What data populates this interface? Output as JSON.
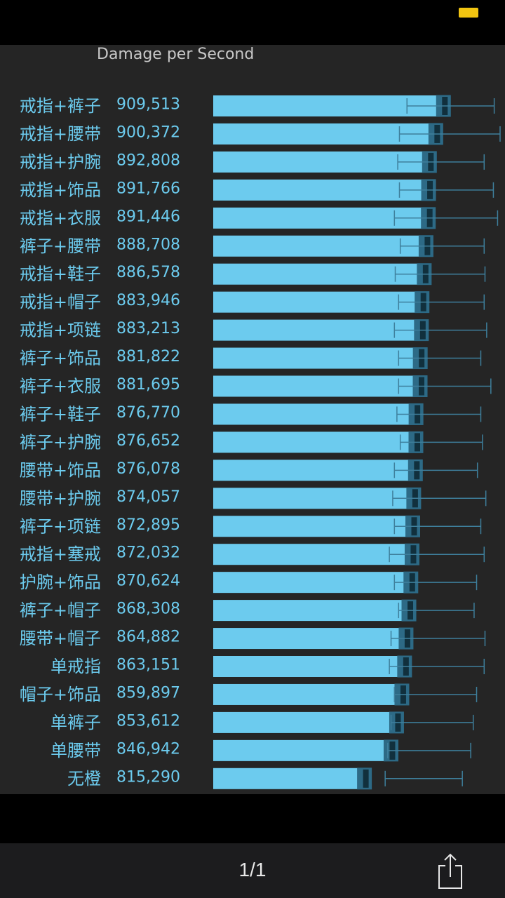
{
  "toolbar": {
    "page_indicator": "1/1"
  },
  "colors": {
    "bar": "#6ccbee",
    "band": "#2d6a86",
    "whisker": "#3e7f9c",
    "mean_marker": "#11303d",
    "label": "#6ccbee",
    "background": "#252525"
  },
  "icons": {
    "share": "share-icon",
    "battery": "battery-icon"
  },
  "chart_data": {
    "type": "bar",
    "orientation": "horizontal",
    "title": "Damage per Second",
    "xlabel": "",
    "ylabel": "",
    "grid": false,
    "legend": "none",
    "categories": [
      "戒指+裤子",
      "戒指+腰带",
      "戒指+护腕",
      "戒指+饰品",
      "戒指+衣服",
      "裤子+腰带",
      "戒指+鞋子",
      "戒指+帽子",
      "戒指+项链",
      "裤子+饰品",
      "裤子+衣服",
      "裤子+鞋子",
      "裤子+护腕",
      "腰带+饰品",
      "腰带+护腕",
      "裤子+项链",
      "戒指+塞戒",
      "护腕+饰品",
      "裤子+帽子",
      "腰带+帽子",
      "单戒指",
      "帽子+饰品",
      "单裤子",
      "单腰带",
      "无橙"
    ],
    "values": [
      909513,
      900372,
      892808,
      891766,
      891446,
      888708,
      886578,
      883946,
      883213,
      881822,
      881695,
      876770,
      876652,
      876078,
      874057,
      872895,
      872032,
      870624,
      868308,
      864882,
      863151,
      859897,
      853612,
      846942,
      815290
    ],
    "value_labels": [
      "909,513",
      "900,372",
      "892,808",
      "891,766",
      "891,446",
      "888,708",
      "886,578",
      "883,946",
      "883,213",
      "881,822",
      "881,695",
      "876,770",
      "876,652",
      "876,078",
      "874,057",
      "872,895",
      "872,032",
      "870,624",
      "868,308",
      "864,882",
      "863,151",
      "859,897",
      "853,612",
      "846,942",
      "815,290"
    ],
    "error_low": [
      866000,
      857000,
      855000,
      857000,
      851000,
      858000,
      852000,
      856000,
      851000,
      856000,
      856000,
      854000,
      858000,
      851000,
      849000,
      851000,
      845000,
      851000,
      856000,
      847000,
      845000,
      851000,
      847000,
      843000,
      840000
    ],
    "error_high": [
      970000,
      977000,
      958000,
      969000,
      974000,
      958000,
      959000,
      958000,
      961000,
      954000,
      966000,
      954000,
      956000,
      950000,
      960000,
      954000,
      958000,
      949000,
      946000,
      959000,
      958000,
      949000,
      945000,
      942000,
      932000
    ],
    "xlim": [
      635000,
      977000
    ]
  }
}
